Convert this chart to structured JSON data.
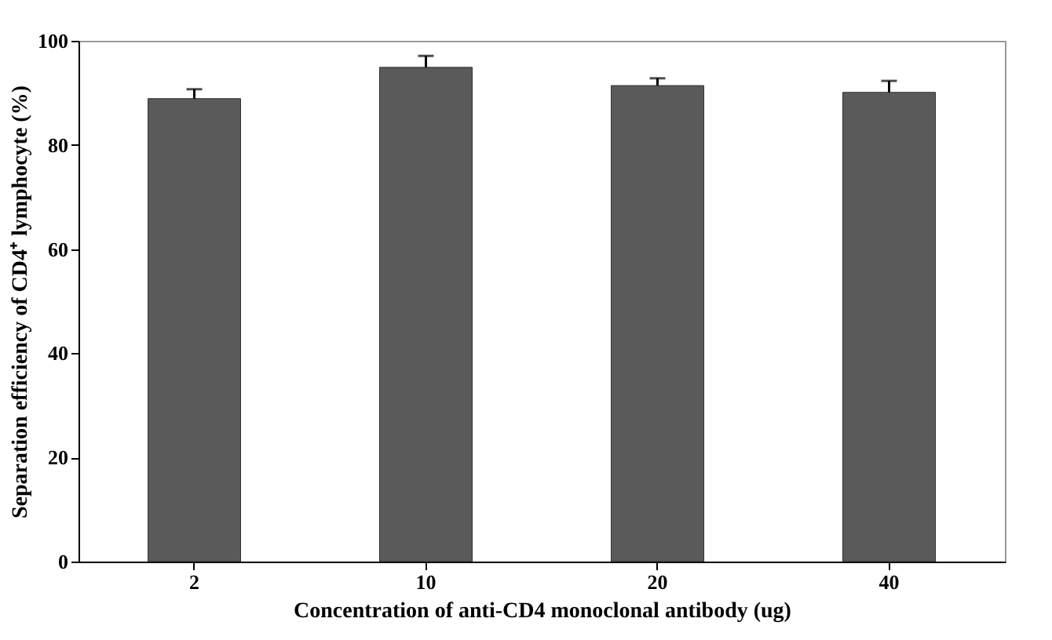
{
  "chart_data": {
    "type": "bar",
    "xlabel": "Concentration of anti-CD4 monoclonal antibody (ug)",
    "ylabel": "Separation efficiency of  CD4⁺ lymphocyte (%)",
    "categories": [
      "2",
      "10",
      "20",
      "40"
    ],
    "values": [
      88.9,
      94.9,
      91.4,
      90.1
    ],
    "errors": [
      [
        88.9,
        90.7
      ],
      [
        94.9,
        97.1
      ],
      [
        91.4,
        92.8
      ],
      [
        90.1,
        92.3
      ]
    ],
    "color": "#5a5a5a",
    "ylim": [
      0,
      100
    ],
    "yticks": [
      0,
      20,
      40,
      60,
      80,
      100
    ],
    "grid": false
  }
}
